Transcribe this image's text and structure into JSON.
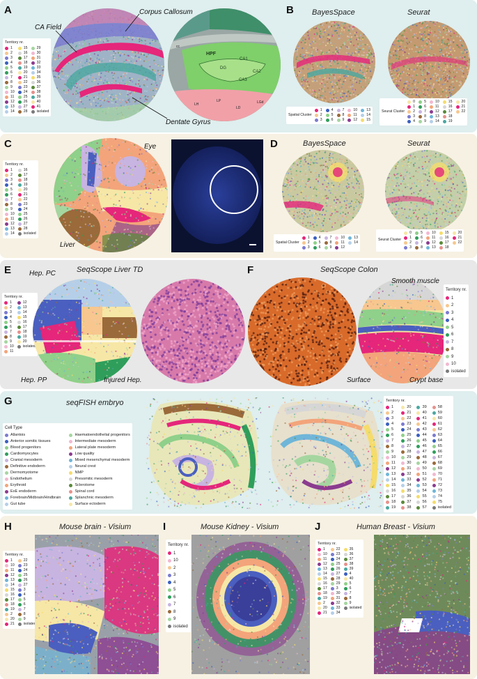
{
  "panels": {
    "A": {
      "label": "A",
      "annotations": {
        "corpus": "Corpus Callosum",
        "ca": "CA Field",
        "dentate": "Dentate Gyrus"
      }
    },
    "B": {
      "label": "B",
      "title_left": "BayesSpace",
      "title_right": "Seurat"
    },
    "C": {
      "label": "C",
      "annotations": {
        "eye": "Eye",
        "liver": "Liver"
      }
    },
    "D": {
      "label": "D",
      "title_left": "BayesSpace",
      "title_right": "Seurat"
    },
    "E": {
      "label": "E",
      "title": "SeqScope Liver TD",
      "annotations": {
        "hep_pc": "Hep. PC",
        "hep_pp": "Hep. PP",
        "injured": "Injured Hep."
      }
    },
    "F": {
      "label": "F",
      "title": "SeqScope Colon",
      "annotations": {
        "smooth": "Smooth muscle",
        "surface": "Surface",
        "crypt": "Crypt base"
      }
    },
    "G": {
      "label": "G",
      "title": "seqFISH embryo"
    },
    "H": {
      "label": "H",
      "title": "Mouse brain - Visium"
    },
    "I": {
      "label": "I",
      "title": "Mouse Kidney - Visium"
    },
    "J": {
      "label": "J",
      "title": "Human Breast - Visium"
    }
  },
  "atlas": {
    "hpf": "HPF",
    "ca1": "CA1",
    "ca2": "CA2",
    "ca3": "CA3",
    "dg": "DG",
    "cc": "cc",
    "lh": "LH",
    "lp": "LP",
    "ld": "LD",
    "mh": "MH",
    "lgd": "LGd"
  },
  "legends": {
    "territory_header": "Territory nr.",
    "isolated": "isolated",
    "spatial_cluster": "Spatial Cluster",
    "seurat_cluster": "Seurat Cluster",
    "cell_type_header": "Cell Type",
    "A_cols": [
      [
        "1",
        "2",
        "3",
        "4",
        "5",
        "6",
        "7",
        "8",
        "9",
        "10",
        "11",
        "12",
        "13",
        "14"
      ],
      [
        "15",
        "16",
        "17",
        "18",
        "19",
        "20",
        "21",
        "22",
        "23",
        "24",
        "25",
        "26",
        "27",
        "28"
      ],
      [
        "29",
        "30",
        "31",
        "32",
        "33",
        "34",
        "35",
        "36",
        "37",
        "38",
        "39",
        "40",
        "41",
        "isolated"
      ]
    ],
    "C_cols": [
      [
        "1",
        "2",
        "3",
        "4",
        "5",
        "6",
        "7",
        "8",
        "9",
        "10",
        "11",
        "12",
        "13",
        "14"
      ],
      [
        "16",
        "17",
        "18",
        "19",
        "20",
        "21",
        "22",
        "23",
        "24",
        "25",
        "26",
        "27",
        "28",
        "isolated"
      ]
    ],
    "E_cols": [
      [
        "1",
        "2",
        "3",
        "4",
        "5",
        "6",
        "7",
        "8",
        "9",
        "10",
        "11"
      ],
      [
        "12",
        "13",
        "14",
        "15",
        "16",
        "17",
        "18",
        "19",
        "20",
        "isolated"
      ]
    ],
    "F_items": [
      "1",
      "2",
      "3",
      "4",
      "5",
      "6",
      "7",
      "8",
      "9",
      "10",
      "isolated"
    ],
    "I_items": [
      "1",
      "10",
      "2",
      "3",
      "4",
      "5",
      "6",
      "7",
      "8",
      "9",
      "isolated"
    ],
    "H_cols": [
      [
        "1",
        "10",
        "11",
        "12",
        "13",
        "14",
        "15",
        "16",
        "17",
        "18",
        "19",
        "2",
        "20",
        "21"
      ],
      [
        "22",
        "23",
        "24",
        "25",
        "26",
        "27",
        "3",
        "4",
        "5",
        "6",
        "7",
        "8",
        "9",
        "isolated"
      ]
    ],
    "J_cols": [
      [
        "1",
        "10",
        "11",
        "12",
        "13",
        "14",
        "15",
        "16",
        "17",
        "18",
        "19",
        "2",
        "20",
        "21"
      ],
      [
        "22",
        "23",
        "24",
        "25",
        "26",
        "27",
        "28",
        "29",
        "3",
        "30",
        "31",
        "32",
        "33",
        "34"
      ],
      [
        "35",
        "36",
        "37",
        "38",
        "39",
        "4",
        "40",
        "5",
        "6",
        "7",
        "8",
        "9",
        "isolated"
      ]
    ],
    "G_right_cols": [
      [
        "1",
        "2",
        "3",
        "4",
        "5",
        "6",
        "7",
        "8",
        "9",
        "10",
        "11",
        "12",
        "13",
        "14",
        "15",
        "16",
        "17",
        "18",
        "19"
      ],
      [
        "20",
        "21",
        "22",
        "23",
        "24",
        "25",
        "26",
        "27",
        "28",
        "29",
        "30",
        "31",
        "32",
        "33",
        "34",
        "35",
        "36",
        "37",
        "38"
      ],
      [
        "39",
        "40",
        "41",
        "42",
        "43",
        "44",
        "45",
        "46",
        "47",
        "48",
        "49",
        "50",
        "51",
        "52",
        "53",
        "54",
        "55",
        "56",
        "57"
      ],
      [
        "58",
        "59",
        "60",
        "61",
        "62",
        "63",
        "64",
        "65",
        "66",
        "67",
        "68",
        "69",
        "70",
        "71",
        "72",
        "73",
        "74",
        "75",
        "isolated"
      ]
    ],
    "B_spatial_cols": [
      [
        "1",
        "2",
        "3"
      ],
      [
        "4",
        "5",
        "6"
      ],
      [
        "7",
        "8",
        "9"
      ],
      [
        "10",
        "11",
        "12"
      ],
      [
        "13",
        "14",
        "15"
      ]
    ],
    "B_seurat_cols": [
      [
        "0",
        "1",
        "2",
        "3",
        "4"
      ],
      [
        "5",
        "6",
        "7",
        "8",
        "9"
      ],
      [
        "10",
        "11",
        "12",
        "13",
        "14"
      ],
      [
        "15",
        "16",
        "17",
        "18",
        "19"
      ],
      [
        "20",
        "21",
        "22"
      ]
    ],
    "D_spatial_cols": [
      [
        "1",
        "2",
        "3"
      ],
      [
        "4",
        "5",
        "6"
      ],
      [
        "7",
        "8",
        "9"
      ],
      [
        "10",
        "11",
        "12"
      ],
      [
        "13",
        "14"
      ]
    ],
    "D_seurat_cols": [
      [
        "0",
        "1",
        "2",
        "3"
      ],
      [
        "5",
        "6",
        "7",
        "8"
      ],
      [
        "10",
        "11",
        "12",
        "13"
      ],
      [
        "15",
        "16",
        "17",
        "18"
      ],
      [
        "20",
        "21",
        "22"
      ]
    ],
    "G_cell_types_left": [
      "Allantois",
      "Anterior somitic tissues",
      "Blood progenitors",
      "Cardiomyocytes",
      "Cranial mesoderm",
      "Definitive endoderm",
      "Dermomyotome",
      "Endothelium",
      "Erythroid",
      "ExE endoderm",
      "Forebrain/Midbrain/Hindbrain",
      "Gut tube"
    ],
    "G_cell_types_right": [
      "Haematoendothelial progenitors",
      "Intermediate mesoderm",
      "Lateral plate mesoderm",
      "Low quality",
      "Mixed mesenchymal mesoderm",
      "Neural crest",
      "NMP",
      "Presomitic mesoderm",
      "Sclerotome",
      "Spinal cord",
      "Splanchnic mesoderm",
      "Surface ectoderm"
    ]
  },
  "palette": [
    "#f6e7a6",
    "#e5267a",
    "#f7c78f",
    "#7b7bd0",
    "#3a5fbf",
    "#8fd08a",
    "#2f9e5b",
    "#c8b4e0",
    "#9a6a3a",
    "#a5d6a0",
    "#f2b8d0",
    "#f3a47a",
    "#8b3b8f",
    "#6fb6d8",
    "#b5cfe9",
    "#f5dc6b",
    "#d6d6d6",
    "#5a8a3a",
    "#e6928c",
    "#4aa8a0"
  ],
  "colors": {
    "bg_blue": "#dfeeee",
    "bg_cream": "#f7f1e3",
    "bg_grey": "#e8e8e8",
    "isolated": "#7a7a7a"
  }
}
